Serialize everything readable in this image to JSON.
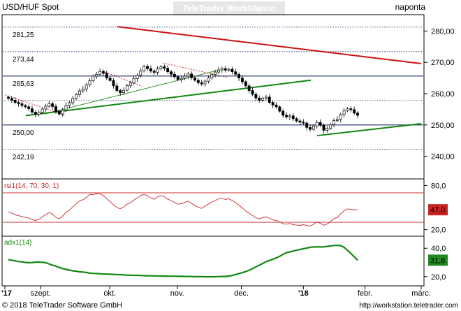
{
  "header": {
    "symbol": "USD/HUF Spot",
    "watermark": "TeleTrader WorkStation",
    "period": "naponta"
  },
  "footer": {
    "copyright": "© 2018 TeleTrader Software GmbH",
    "url": "http://workstation.teletrader.com"
  },
  "colors": {
    "price_line": "#000000",
    "resistance_trend": "#cc1111",
    "support_trend": "#118811",
    "grid_dark": "#1a2a66",
    "rsi_line": "#cc2222",
    "adx_line": "#118811",
    "rsi_badge": "#cc2222",
    "adx_badge": "#228822"
  },
  "chart_data": [
    {
      "panel": "price",
      "type": "candlestick",
      "ylim": [
        233,
        285
      ],
      "yticks": [
        "280,00",
        "270,00",
        "260,00",
        "250,00",
        "240,00"
      ],
      "ytick_values": [
        280,
        270,
        260,
        250,
        240
      ],
      "hlines": [
        {
          "label": "281,25",
          "value": 281.25,
          "style": "dotted"
        },
        {
          "label": "273,44",
          "value": 273.44,
          "style": "dotted"
        },
        {
          "label": "265,63",
          "value": 265.63,
          "style": "solid"
        },
        {
          "label": "250,00",
          "value": 250.0,
          "style": "solid"
        },
        {
          "label": "242,19",
          "value": 242.19,
          "style": "dotted"
        }
      ],
      "extra_dotted": [
        257.8
      ],
      "x_labels": [
        "'17",
        "szept.",
        "okt.",
        "nov.",
        "dec.",
        "'18",
        "febr.",
        "márc."
      ],
      "x_label_positions": [
        0.0,
        0.086,
        0.252,
        0.414,
        0.568,
        0.717,
        0.865,
        1.0
      ],
      "close": [
        258.5,
        257.9,
        257.2,
        256.8,
        256.2,
        255.8,
        255.2,
        254.1,
        253.4,
        254.0,
        255.1,
        256.0,
        256.8,
        255.9,
        254.3,
        253.5,
        254.8,
        256.3,
        257.1,
        258.5,
        259.7,
        260.9,
        261.5,
        262.8,
        264.1,
        265.6,
        266.2,
        267.1,
        266.5,
        265.0,
        264.2,
        262.5,
        261.0,
        260.3,
        261.1,
        262.6,
        263.4,
        264.8,
        265.9,
        267.3,
        268.7,
        268.0,
        267.2,
        266.8,
        267.9,
        268.6,
        268.1,
        267.0,
        266.2,
        265.4,
        264.5,
        264.9,
        265.6,
        266.3,
        265.1,
        264.3,
        263.5,
        263.1,
        264.0,
        265.0,
        266.1,
        266.9,
        267.6,
        268.0,
        267.5,
        267.8,
        267.0,
        266.2,
        265.0,
        263.8,
        262.5,
        261.0,
        259.8,
        258.6,
        257.9,
        258.6,
        258.9,
        257.2,
        256.4,
        255.8,
        254.4,
        253.1,
        252.6,
        252.9,
        252.0,
        251.3,
        250.9,
        250.6,
        249.2,
        248.6,
        249.7,
        250.8,
        249.9,
        248.3,
        248.9,
        250.1,
        251.4,
        251.8,
        253.3,
        254.6,
        255.2,
        254.9,
        253.8,
        253.1
      ],
      "trendlines": [
        {
          "kind": "resistance",
          "from": [
            0.27,
            281.4
          ],
          "to": [
            1.0,
            269.6
          ]
        },
        {
          "kind": "support",
          "from": [
            0.05,
            253.0
          ],
          "to": [
            0.735,
            264.3
          ]
        },
        {
          "kind": "support",
          "from": [
            0.75,
            246.6
          ],
          "to": [
            1.0,
            250.4
          ]
        },
        {
          "kind": "support_minor",
          "from": [
            0.095,
            253.5
          ],
          "to": [
            0.51,
            267.4
          ]
        },
        {
          "kind": "resistance_minor",
          "from": [
            0.0,
            259.6
          ],
          "to": [
            0.145,
            253.1
          ]
        },
        {
          "kind": "resistance_minor",
          "from": [
            0.235,
            267.2
          ],
          "to": [
            0.33,
            262.3
          ]
        },
        {
          "kind": "resistance_minor",
          "from": [
            0.38,
            269.8
          ],
          "to": [
            0.535,
            265.2
          ]
        }
      ]
    },
    {
      "panel": "rsi",
      "type": "line",
      "title": "rsi1(14, 70, 30, 1)",
      "ylim": [
        12,
        88
      ],
      "yticks": [
        "80,0",
        "20,0"
      ],
      "ytick_values": [
        80,
        20
      ],
      "bands": [
        70,
        30
      ],
      "current_label": "47,0",
      "values": [
        44.0,
        42.5,
        40.1,
        39.0,
        37.7,
        36.9,
        35.8,
        33.8,
        32.3,
        34.1,
        37.3,
        40.5,
        43.3,
        41.1,
        36.8,
        34.8,
        38.7,
        43.6,
        46.4,
        51.0,
        55.0,
        58.9,
        60.6,
        63.9,
        67.7,
        67.5,
        69.0,
        68.6,
        66.3,
        62.1,
        58.2,
        53.7,
        50.0,
        48.4,
        50.7,
        54.6,
        56.6,
        60.1,
        62.9,
        66.4,
        67.8,
        66.5,
        63.1,
        61.3,
        64.4,
        66.3,
        64.7,
        61.3,
        59.4,
        57.1,
        54.6,
        55.3,
        57.0,
        58.8,
        55.8,
        52.6,
        50.4,
        49.0,
        51.9,
        54.9,
        57.5,
        59.5,
        61.9,
        62.4,
        61.0,
        62.0,
        59.6,
        56.9,
        53.3,
        49.4,
        45.3,
        42.1,
        39.2,
        36.1,
        34.5,
        36.4,
        37.6,
        35.4,
        33.3,
        32.4,
        30.5,
        28.0,
        27.5,
        28.4,
        26.7,
        26.2,
        25.8,
        26.7,
        25.7,
        24.7,
        27.3,
        30.2,
        28.6,
        25.9,
        27.6,
        31.1,
        34.8,
        36.5,
        41.6,
        45.6,
        48.0,
        47.7,
        47.1,
        47.0
      ]
    },
    {
      "panel": "adx",
      "type": "line",
      "title": "adx1(14)",
      "ylim": [
        14,
        48
      ],
      "yticks": [
        "40,0",
        "20,0"
      ],
      "ytick_values": [
        40,
        20
      ],
      "current_label": "31,6",
      "values": [
        32.0,
        31.6,
        31.1,
        30.6,
        30.4,
        30.0,
        29.8,
        29.9,
        30.2,
        30.3,
        30.1,
        29.8,
        29.0,
        28.1,
        27.4,
        26.5,
        25.7,
        25.1,
        24.6,
        24.1,
        23.8,
        23.4,
        23.2,
        22.9,
        22.5,
        22.3,
        22.2,
        22.0,
        21.9,
        21.8,
        21.7,
        21.6,
        21.5,
        21.3,
        21.3,
        21.1,
        21.0,
        20.9,
        20.9,
        20.8,
        20.7,
        20.6,
        20.6,
        20.5,
        20.5,
        20.4,
        20.4,
        20.3,
        20.3,
        20.3,
        20.2,
        20.2,
        20.1,
        20.1,
        20.1,
        20.0,
        20.0,
        20.0,
        19.9,
        19.9,
        19.9,
        19.9,
        20.0,
        20.1,
        20.1,
        20.4,
        20.8,
        21.5,
        22.1,
        22.8,
        23.6,
        24.5,
        25.6,
        26.9,
        28.0,
        29.3,
        30.5,
        31.4,
        32.3,
        33.2,
        34.3,
        35.8,
        36.8,
        37.4,
        38.1,
        38.6,
        39.2,
        39.7,
        40.1,
        40.7,
        40.9,
        41.0,
        40.9,
        41.0,
        41.3,
        41.6,
        42.0,
        42.1,
        41.8,
        40.7,
        38.6,
        36.4,
        34.0,
        31.6
      ]
    }
  ]
}
